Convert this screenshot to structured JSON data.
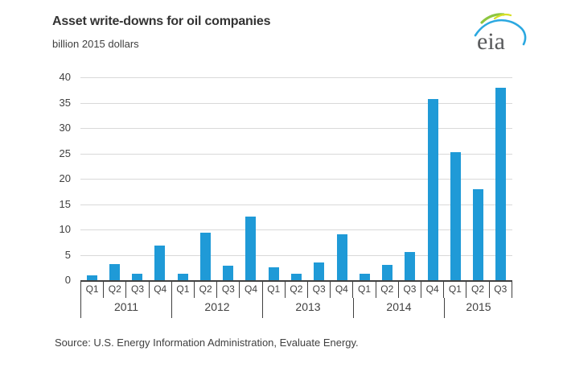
{
  "header": {
    "title": "Asset write-downs for oil companies",
    "subtitle": "billion 2015 dollars"
  },
  "logo": {
    "text": "eia"
  },
  "source_note": "Source:  U.S. Energy Information Administration, Evaluate Energy.",
  "chart_data": {
    "type": "bar",
    "title": "Asset write-downs for oil companies",
    "ylabel": "billion 2015 dollars",
    "xlabel": "",
    "ylim": [
      0,
      40
    ],
    "yticks": [
      0,
      5,
      10,
      15,
      20,
      25,
      30,
      35,
      40
    ],
    "grid": "horizontal",
    "legend": "none",
    "bar_color": "#1f9ad7",
    "gridline_color": "#d9d9d9",
    "axis_color": "#404040",
    "categories": [
      "Q1",
      "Q2",
      "Q3",
      "Q4",
      "Q1",
      "Q2",
      "Q3",
      "Q4",
      "Q1",
      "Q2",
      "Q3",
      "Q4",
      "Q1",
      "Q2",
      "Q3",
      "Q4",
      "Q1",
      "Q2",
      "Q3"
    ],
    "values": [
      0.9,
      3.2,
      1.2,
      6.8,
      1.2,
      9.4,
      2.8,
      12.5,
      2.5,
      1.3,
      3.5,
      9.1,
      1.2,
      3.0,
      5.5,
      35.7,
      25.2,
      18.0,
      38.0
    ],
    "groups": [
      {
        "year": "2011",
        "quarters": [
          "Q1",
          "Q2",
          "Q3",
          "Q4"
        ],
        "values": [
          0.9,
          3.2,
          1.2,
          6.8
        ]
      },
      {
        "year": "2012",
        "quarters": [
          "Q1",
          "Q2",
          "Q3",
          "Q4"
        ],
        "values": [
          1.2,
          9.4,
          2.8,
          12.5
        ]
      },
      {
        "year": "2013",
        "quarters": [
          "Q1",
          "Q2",
          "Q3",
          "Q4"
        ],
        "values": [
          2.5,
          1.3,
          3.5,
          9.1
        ]
      },
      {
        "year": "2014",
        "quarters": [
          "Q1",
          "Q2",
          "Q3",
          "Q4"
        ],
        "values": [
          1.2,
          3.0,
          5.5,
          35.7
        ]
      },
      {
        "year": "2015",
        "quarters": [
          "Q1",
          "Q2",
          "Q3"
        ],
        "values": [
          25.2,
          18.0,
          38.0
        ]
      }
    ]
  }
}
